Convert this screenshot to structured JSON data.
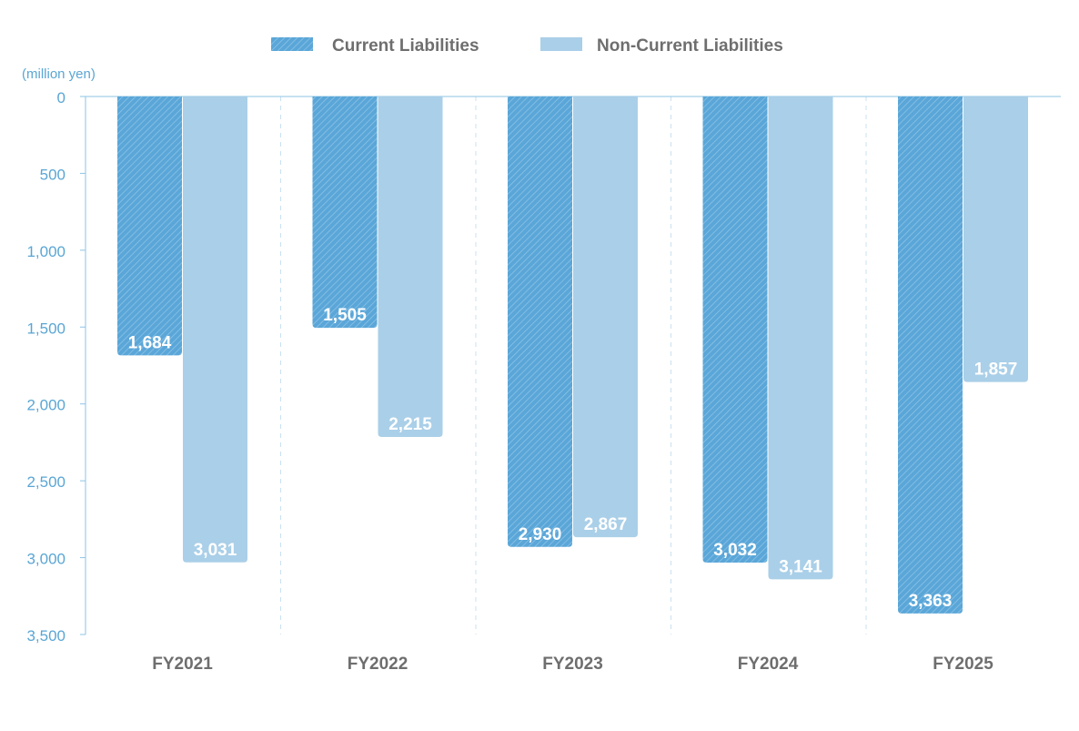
{
  "chart_data": {
    "type": "bar",
    "orientation": "inverted-vertical",
    "unit_label": "(million yen)",
    "categories": [
      "FY2021",
      "FY2022",
      "FY2023",
      "FY2024",
      "FY2025"
    ],
    "series": [
      {
        "name": "Current Liabilities",
        "color": "#5aa6d8",
        "pattern": "diagonal-hatch",
        "values": [
          1684,
          1505,
          2930,
          3032,
          3363
        ],
        "labels": [
          "1,684",
          "1,505",
          "2,930",
          "3,032",
          "3,363"
        ]
      },
      {
        "name": "Non-Current Liabilities",
        "color": "#aacfe8",
        "pattern": "solid",
        "values": [
          3031,
          2215,
          2867,
          3141,
          1857
        ],
        "labels": [
          "3,031",
          "2,215",
          "2,867",
          "3,141",
          "1,857"
        ]
      }
    ],
    "ylim": [
      0,
      3500
    ],
    "yticks": [
      0,
      500,
      1000,
      1500,
      2000,
      2500,
      3000,
      3500
    ],
    "ytick_labels": [
      "0",
      "500",
      "1,000",
      "1,500",
      "2,000",
      "2,500",
      "3,000",
      "3,500"
    ],
    "legend_position": "top-center",
    "grid": false
  }
}
